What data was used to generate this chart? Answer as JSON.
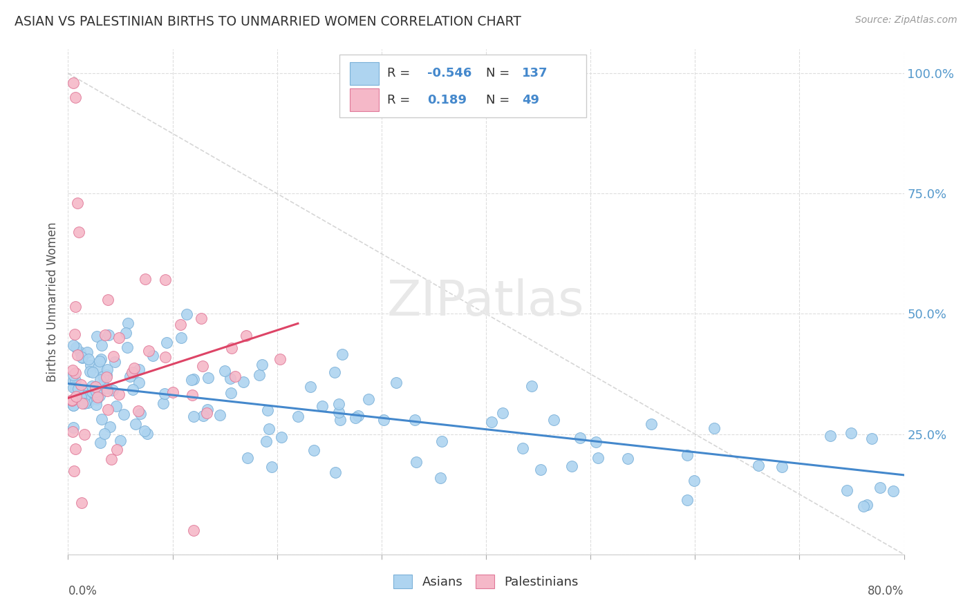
{
  "title": "ASIAN VS PALESTINIAN BIRTHS TO UNMARRIED WOMEN CORRELATION CHART",
  "source": "Source: ZipAtlas.com",
  "ylabel": "Births to Unmarried Women",
  "asian_R": -0.546,
  "asian_N": 137,
  "palestinian_R": 0.189,
  "palestinian_N": 49,
  "asian_color": "#aed4f0",
  "asian_edge_color": "#7ab0d8",
  "palestinian_color": "#f5b8c8",
  "palestinian_edge_color": "#e07898",
  "asian_line_color": "#4488cc",
  "palestinian_line_color": "#dd4466",
  "ref_line_color": "#cccccc",
  "background_color": "#ffffff",
  "y_tick_color": "#5599cc",
  "title_color": "#333333",
  "source_color": "#999999",
  "axis_color": "#cccccc",
  "label_color": "#555555",
  "watermark_color": "#e8e8e8",
  "xmin": 0.0,
  "xmax": 0.8,
  "ymin": 0.0,
  "ymax": 1.05,
  "asian_trend_x": [
    0.0,
    0.8
  ],
  "asian_trend_y": [
    0.355,
    0.165
  ],
  "palestinian_trend_x": [
    0.0,
    0.22
  ],
  "palestinian_trend_y": [
    0.325,
    0.48
  ],
  "ref_line_x": [
    0.0,
    0.8
  ],
  "ref_line_y": [
    1.0,
    0.0
  ]
}
